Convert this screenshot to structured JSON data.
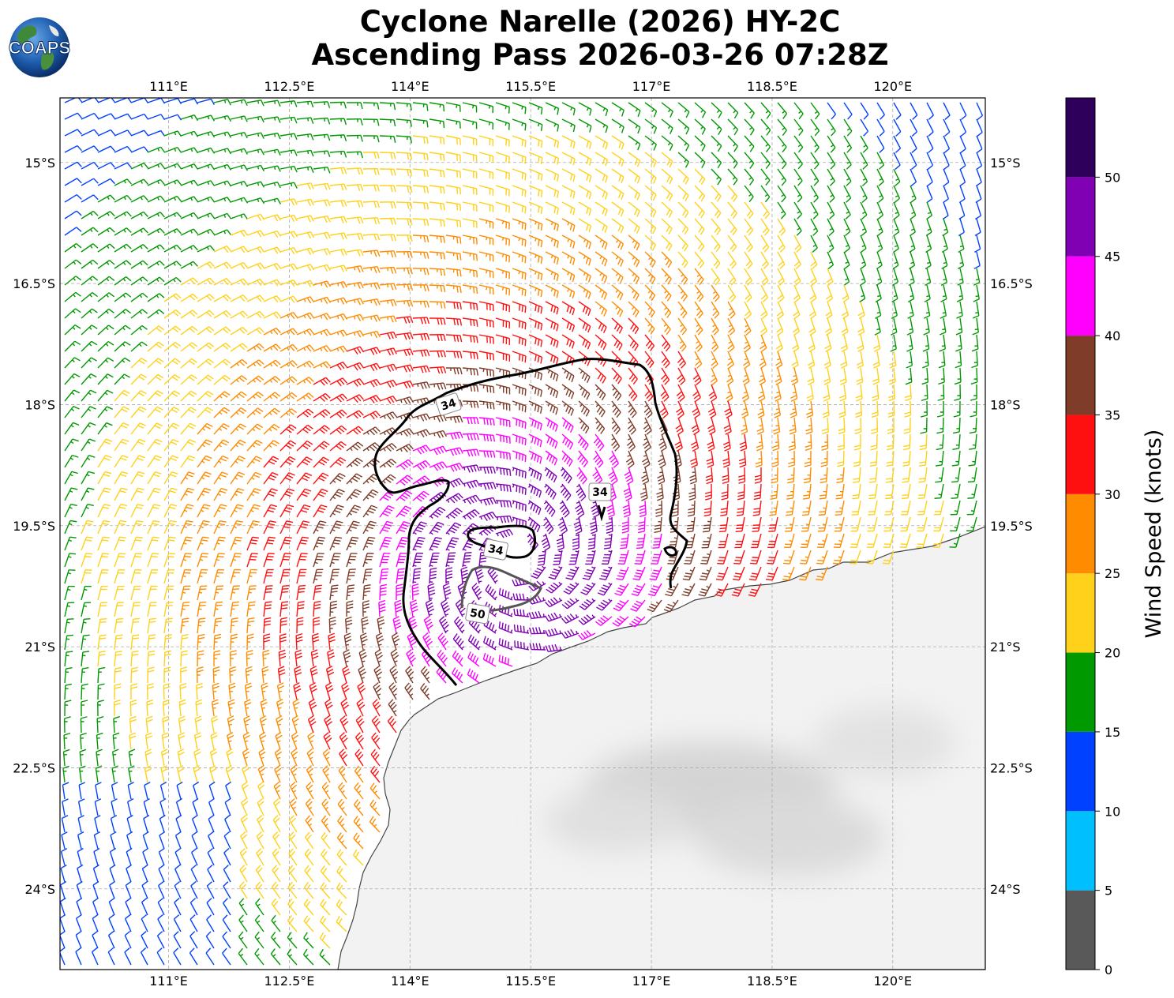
{
  "title": {
    "line1": "Cyclone Narelle (2026) HY-2C",
    "line2": "Ascending Pass 2026-03-26 07:28Z"
  },
  "logo": {
    "text": "COAPS",
    "icon": "globe-logo-icon"
  },
  "map": {
    "lon_ticks": [
      "111°E",
      "112.5°E",
      "114°E",
      "115.5°E",
      "117°E",
      "118.5°E",
      "120°E"
    ],
    "lat_ticks": [
      "15°S",
      "16.5°S",
      "18°S",
      "19.5°S",
      "21°S",
      "22.5°S",
      "24°S"
    ],
    "lon_range": [
      109.65,
      121.15
    ],
    "lat_range": [
      -25.0,
      -14.2
    ],
    "storm_center": {
      "lon": 115.3,
      "lat": -19.9
    },
    "contour_labels": [
      "34",
      "34",
      "34",
      "50"
    ],
    "land_color": "#f2f2f2",
    "coast_color": "#444444"
  },
  "colorbar": {
    "label": "Wind Speed (knots)",
    "ticks": [
      "0",
      "5",
      "10",
      "15",
      "20",
      "25",
      "30",
      "35",
      "40",
      "45",
      "50"
    ],
    "bins": [
      {
        "min": 0,
        "max": 5,
        "color": "#595959"
      },
      {
        "min": 5,
        "max": 10,
        "color": "#00bfff"
      },
      {
        "min": 10,
        "max": 15,
        "color": "#0040ff"
      },
      {
        "min": 15,
        "max": 20,
        "color": "#009900"
      },
      {
        "min": 20,
        "max": 25,
        "color": "#ffd11a"
      },
      {
        "min": 25,
        "max": 30,
        "color": "#ff8c00"
      },
      {
        "min": 30,
        "max": 35,
        "color": "#ff1010"
      },
      {
        "min": 35,
        "max": 40,
        "color": "#7f3c28"
      },
      {
        "min": 40,
        "max": 45,
        "color": "#ff00ff"
      },
      {
        "min": 45,
        "max": 50,
        "color": "#8000b3"
      },
      {
        "min": 50,
        "max": 55,
        "color": "#2e005c"
      }
    ]
  }
}
